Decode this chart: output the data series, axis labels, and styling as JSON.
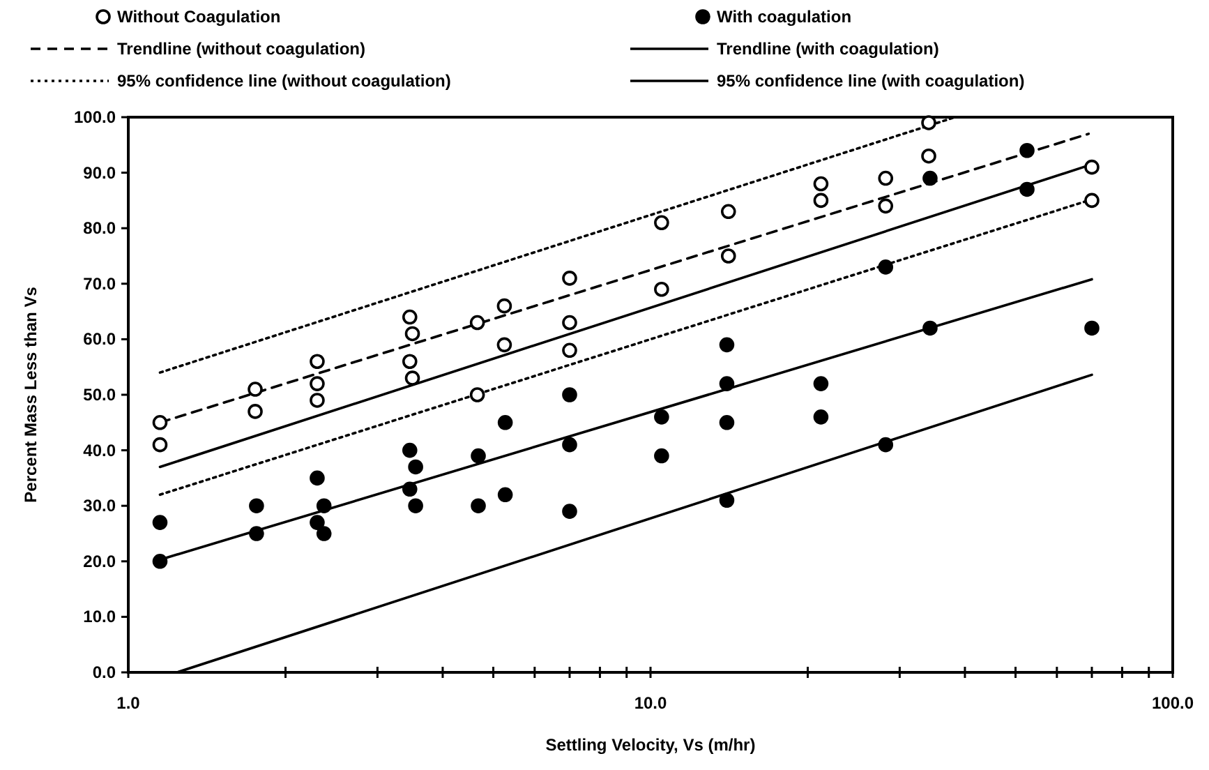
{
  "chart_data": {
    "type": "scatter",
    "xlabel": "Settling Velocity, Vs (m/hr)",
    "ylabel": "Percent Mass Less than Vs",
    "log": "x",
    "grid": false,
    "legend": "top",
    "xlim": [
      1,
      100
    ],
    "ylim": [
      0,
      100
    ],
    "xticks": [
      {
        "value": 1,
        "label": "1.0"
      },
      {
        "value": 2,
        "label": null
      },
      {
        "value": 3,
        "label": null
      },
      {
        "value": 4,
        "label": null
      },
      {
        "value": 5,
        "label": null
      },
      {
        "value": 6,
        "label": null
      },
      {
        "value": 7,
        "label": null
      },
      {
        "value": 8,
        "label": null
      },
      {
        "value": 9,
        "label": null
      },
      {
        "value": 10,
        "label": "10.0"
      },
      {
        "value": 20,
        "label": null
      },
      {
        "value": 30,
        "label": null
      },
      {
        "value": 40,
        "label": null
      },
      {
        "value": 50,
        "label": null
      },
      {
        "value": 60,
        "label": null
      },
      {
        "value": 70,
        "label": null
      },
      {
        "value": 80,
        "label": null
      },
      {
        "value": 90,
        "label": null
      },
      {
        "value": 100,
        "label": "100.0"
      }
    ],
    "yticks": [
      {
        "value": 0,
        "label": "0.0"
      },
      {
        "value": 10,
        "label": "10.0"
      },
      {
        "value": 20,
        "label": "20.0"
      },
      {
        "value": 30,
        "label": "30.0"
      },
      {
        "value": 40,
        "label": "40.0"
      },
      {
        "value": 50,
        "label": "50.0"
      },
      {
        "value": 60,
        "label": "60.0"
      },
      {
        "value": 70,
        "label": "70.0"
      },
      {
        "value": 80,
        "label": "80.0"
      },
      {
        "value": 90,
        "label": "90.0"
      },
      {
        "value": 100,
        "label": "100.0"
      }
    ],
    "series": [
      {
        "name": "Without Coagulation",
        "marker": "circle",
        "color": "#000000",
        "x": [
          1.15,
          1.15,
          1.75,
          1.75,
          2.3,
          2.3,
          2.3,
          3.46,
          3.5,
          3.46,
          3.5,
          4.66,
          4.66,
          5.25,
          5.25,
          7,
          7,
          7,
          10.5,
          10.5,
          14.1,
          14.1,
          21.2,
          21.2,
          28.2,
          28.2,
          34.1,
          34.1,
          70,
          70
        ],
        "values": [
          45,
          41,
          51,
          47,
          56,
          52,
          49,
          64,
          61,
          56,
          53,
          63,
          50,
          66,
          59,
          71,
          63,
          58,
          81,
          69,
          83,
          75,
          88,
          85,
          89,
          84,
          99,
          93,
          91,
          85
        ]
      },
      {
        "name": "With coagulation",
        "marker": "circle",
        "color": "#000000",
        "x": [
          1.15,
          1.15,
          1.76,
          1.76,
          2.3,
          2.3,
          2.37,
          2.37,
          3.46,
          3.55,
          3.46,
          3.55,
          4.68,
          4.68,
          5.27,
          5.27,
          7,
          7,
          7,
          10.5,
          10.5,
          14,
          14,
          14,
          14,
          21.2,
          21.2,
          28.2,
          28.2,
          34.3,
          34.3,
          52.6,
          52.6,
          70
        ],
        "values": [
          27,
          20,
          30,
          25,
          35,
          27,
          30,
          25,
          40,
          37,
          33,
          30,
          39,
          30,
          45,
          32,
          50,
          41,
          29,
          46,
          39,
          59,
          52,
          45,
          31,
          52,
          46,
          73,
          41,
          89,
          62,
          94,
          87,
          62
        ]
      },
      {
        "name": "Trendline (without coagulation)",
        "type": "line",
        "line_style": "dashed",
        "marker": "none",
        "color": "#000000",
        "x": [
          1.15,
          69
        ],
        "values": [
          45,
          97
        ]
      },
      {
        "name": "Trendline (with coagulation)",
        "type": "line",
        "line_style": "solid",
        "marker": "none",
        "color": "#000000",
        "x": [
          1.15,
          70
        ],
        "values": [
          20.3,
          70.8
        ]
      },
      {
        "name": "95% confidence line (without coagulation)",
        "type": "line",
        "line_style": "dotted",
        "marker": "none",
        "color": "#000000",
        "x": [
          1.15,
          38.3
        ],
        "values": [
          54,
          100
        ]
      },
      {
        "name": "95% confidence line (with coagulation)",
        "type": "line",
        "line_style": "solid",
        "marker": "none",
        "color": "#000000",
        "x": [
          1.15,
          70
        ],
        "values": [
          37,
          91.5
        ]
      },
      {
        "type": "line",
        "line_style": "dotted",
        "marker": "none",
        "color": "#000000",
        "x": [
          1.15,
          69
        ],
        "values": [
          32,
          85
        ]
      },
      {
        "type": "line",
        "line_style": "solid",
        "marker": "none",
        "color": "#000000",
        "x": [
          1.24,
          70
        ],
        "values": [
          0,
          53.6
        ]
      }
    ]
  }
}
